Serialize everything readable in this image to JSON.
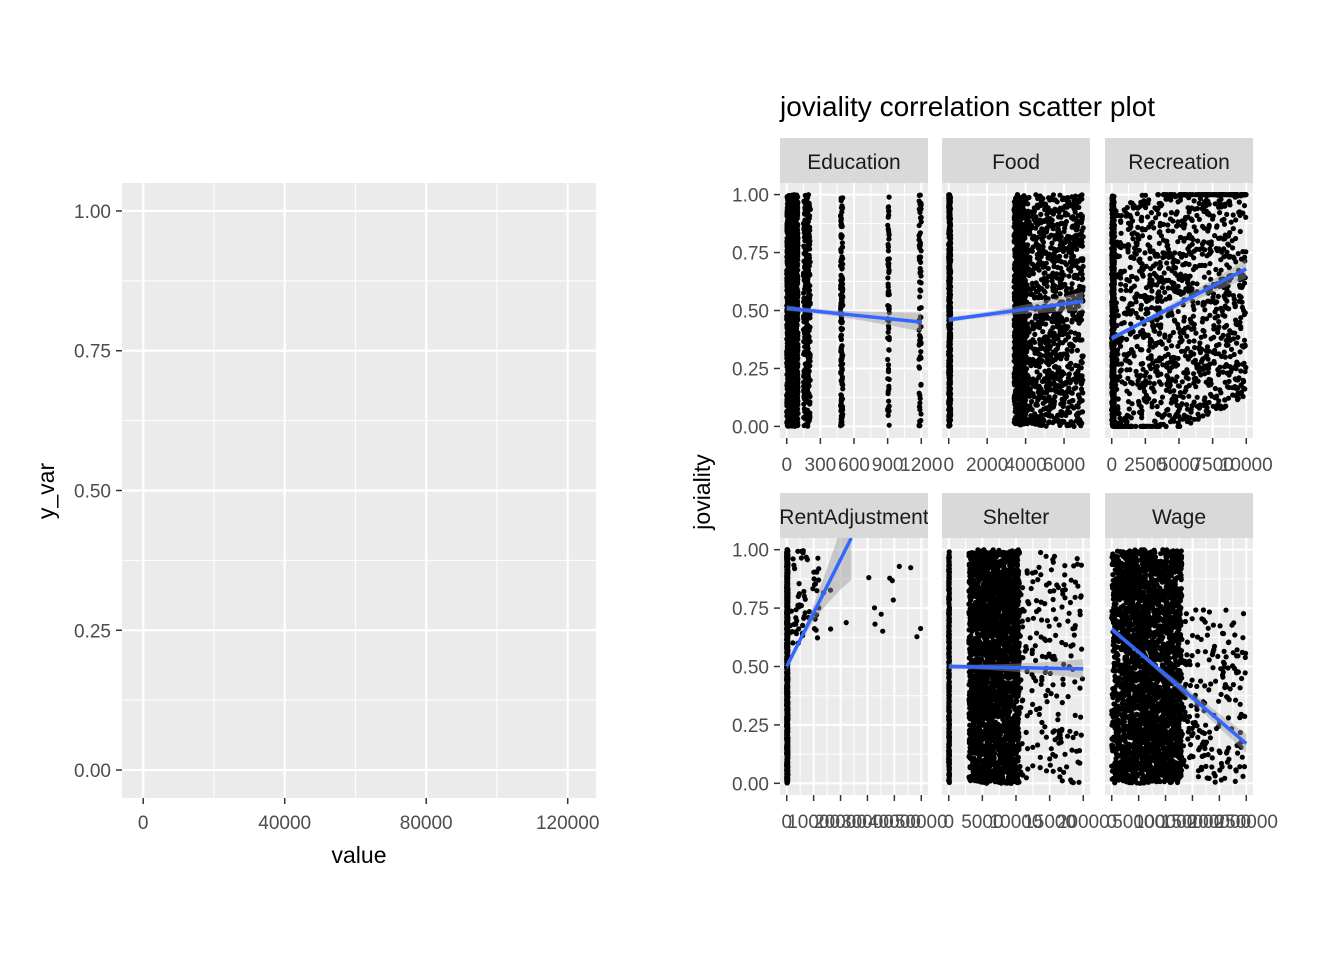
{
  "chart_data": [
    {
      "type": "scatter",
      "title": "",
      "xlabel": "value",
      "ylabel": "y_var",
      "xlim": [
        -6000,
        128000
      ],
      "ylim": [
        -0.05,
        1.05
      ],
      "x_ticks": [
        "0",
        "40000",
        "80000",
        "120000"
      ],
      "y_ticks": [
        "0.00",
        "0.25",
        "0.50",
        "0.75",
        "1.00"
      ],
      "x_tick_values": [
        0,
        40000,
        80000,
        120000
      ],
      "y_tick_values": [
        0,
        0.25,
        0.5,
        0.75,
        1
      ],
      "grid": true,
      "series": []
    },
    {
      "type": "scatter",
      "title": "joviality correlation scatter plot",
      "xlabel": "",
      "ylabel": "joviality",
      "ylim": [
        -0.05,
        1.05
      ],
      "y_ticks": [
        "0.00",
        "0.25",
        "0.50",
        "0.75",
        "1.00"
      ],
      "y_tick_values": [
        0,
        0.25,
        0.5,
        0.75,
        1
      ],
      "grid": true,
      "facets": [
        {
          "name": "Education",
          "xlim": [
            -60,
            1260
          ],
          "x_ticks": [
            "0",
            "300",
            "600",
            "900",
            "1200"
          ],
          "x_tick_values": [
            0,
            300,
            600,
            900,
            1200
          ],
          "trend": [
            [
              0,
              0.51
            ],
            [
              1200,
              0.45
            ]
          ],
          "point_bands": [
            [
              0,
              100,
              1800
            ],
            [
              150,
              210,
              300
            ],
            [
              480,
              500,
              150
            ],
            [
              900,
              915,
              70
            ],
            [
              1180,
              1200,
              80
            ]
          ]
        },
        {
          "name": "Food",
          "xlim": [
            -350,
            7350
          ],
          "x_ticks": [
            "0",
            "2000",
            "4000",
            "6000"
          ],
          "x_tick_values": [
            0,
            2000,
            4000,
            6000
          ],
          "trend": [
            [
              0,
              0.46
            ],
            [
              7000,
              0.54
            ]
          ],
          "point_bands": [
            [
              0,
              100,
              500
            ],
            [
              3400,
              4000,
              900
            ],
            [
              4000,
              7000,
              1000
            ]
          ]
        },
        {
          "name": "Recreation",
          "xlim": [
            -500,
            10500
          ],
          "x_ticks": [
            "0",
            "2500",
            "5000",
            "7500",
            "10000"
          ],
          "x_tick_values": [
            0,
            2500,
            5000,
            7500,
            10000
          ],
          "trend": [
            [
              0,
              0.38
            ],
            [
              10000,
              0.68
            ]
          ],
          "point_bands": [
            [
              0,
              200,
              500
            ],
            [
              200,
              10000,
              1300
            ]
          ]
        },
        {
          "name": "RentAdjustment",
          "xlim": [
            -2500,
            52500
          ],
          "x_ticks": [
            "0",
            "10000",
            "20000",
            "30000",
            "40000",
            "50000"
          ],
          "x_tick_values": [
            0,
            10000,
            20000,
            30000,
            40000,
            50000
          ],
          "trend": [
            [
              0,
              0.5
            ],
            [
              24000,
              1.05
            ]
          ],
          "point_bands": [
            [
              0,
              400,
              1200
            ],
            [
              1000,
              12000,
              60
            ],
            [
              12000,
              50000,
              16
            ]
          ]
        },
        {
          "name": "Shelter",
          "xlim": [
            -1000,
            21000
          ],
          "x_ticks": [
            "0",
            "5000",
            "10000",
            "15000",
            "20000"
          ],
          "x_tick_values": [
            0,
            5000,
            10000,
            15000,
            20000
          ],
          "trend": [
            [
              0,
              0.5
            ],
            [
              20000,
              0.49
            ]
          ],
          "point_bands": [
            [
              0,
              100,
              300
            ],
            [
              3000,
              10500,
              2500
            ],
            [
              10500,
              20000,
              200
            ]
          ]
        },
        {
          "name": "Wage",
          "xlim": [
            -12500,
            262500
          ],
          "x_ticks": [
            "0",
            "50000",
            "100000",
            "150000",
            "200000",
            "250000"
          ],
          "x_tick_values": [
            0,
            50000,
            100000,
            150000,
            200000,
            250000
          ],
          "trend": [
            [
              0,
              0.66
            ],
            [
              250000,
              0.17
            ]
          ],
          "point_bands": [
            [
              0,
              20000,
              300
            ],
            [
              20000,
              130000,
              2500
            ],
            [
              130000,
              250000,
              200
            ]
          ]
        }
      ]
    }
  ],
  "colors": {
    "panel_bg": "#ebebeb",
    "grid": "#ffffff",
    "strip_bg": "#d9d9d9",
    "point": "#000000",
    "trend": "#3366ff",
    "ribbon": "#999999",
    "tick": "#333333"
  }
}
